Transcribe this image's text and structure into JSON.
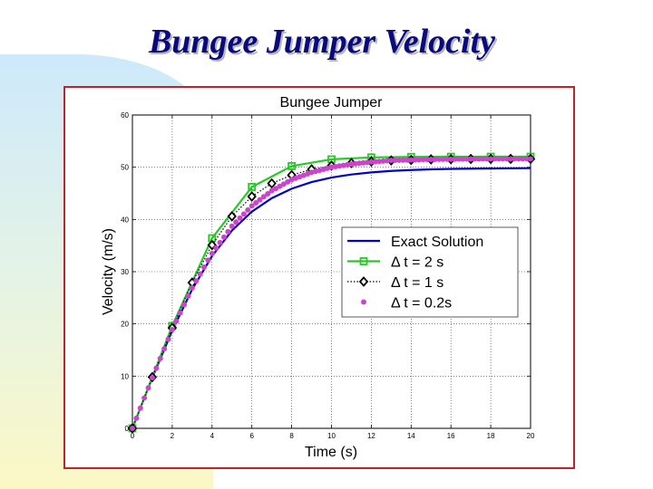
{
  "slide": {
    "title": "Bungee Jumper Velocity"
  },
  "chart_data": {
    "type": "line",
    "title": "Bungee Jumper",
    "xlabel": "Time (s)",
    "ylabel": "Velocity (m/s)",
    "xlim": [
      0,
      20
    ],
    "ylim": [
      0,
      60
    ],
    "xticks": [
      0,
      2,
      4,
      6,
      8,
      10,
      12,
      14,
      16,
      18,
      20
    ],
    "yticks": [
      0,
      10,
      20,
      30,
      40,
      50,
      60
    ],
    "grid": true,
    "legend_position": "center-right",
    "series": [
      {
        "name": "Exact Solution",
        "color": "#0000cc",
        "style": "solid",
        "x": [
          0,
          1,
          2,
          3,
          4,
          5,
          6,
          7,
          8,
          9,
          10,
          11,
          12,
          13,
          14,
          15,
          16,
          17,
          18,
          19,
          20
        ],
        "y": [
          0,
          9.69,
          18.73,
          26.61,
          32.99,
          37.88,
          41.49,
          44.07,
          45.89,
          47.15,
          48.02,
          48.61,
          49.01,
          49.29,
          49.47,
          49.59,
          49.68,
          49.73,
          49.77,
          49.8,
          49.82
        ]
      },
      {
        "name": "Δ t = 2 s",
        "color": "#22cc22",
        "style": "solid",
        "marker": "square",
        "x": [
          0,
          2,
          4,
          6,
          8,
          10,
          12,
          14,
          16,
          18,
          20
        ],
        "y": [
          0,
          19.62,
          36.41,
          46.22,
          50.22,
          51.51,
          51.88,
          51.98,
          52.01,
          52.02,
          52.02
        ]
      },
      {
        "name": "Δ t = 1 s",
        "color": "#000000",
        "style": "dotted",
        "marker": "diamond",
        "x": [
          0,
          1,
          2,
          3,
          4,
          5,
          6,
          7,
          8,
          9,
          10,
          11,
          12,
          13,
          14,
          15,
          16,
          17,
          18,
          19,
          20
        ],
        "y": [
          0,
          9.81,
          19.24,
          27.9,
          35.1,
          40.6,
          44.4,
          46.9,
          48.5,
          49.6,
          50.3,
          50.8,
          51.1,
          51.3,
          51.4,
          51.5,
          51.55,
          51.58,
          51.6,
          51.6,
          51.6
        ]
      },
      {
        "name": "Δ t = 0.2s",
        "color": "#cc44cc",
        "style": "none",
        "marker": "circle",
        "x": [
          0,
          1,
          2,
          3,
          4,
          5,
          6,
          7,
          8,
          9,
          10,
          11,
          12,
          13,
          14,
          15,
          16,
          17,
          18,
          19,
          20
        ],
        "y": [
          0,
          9.7,
          18.9,
          26.9,
          33.5,
          38.7,
          42.6,
          45.5,
          47.6,
          49.0,
          50.0,
          50.6,
          51.0,
          51.3,
          51.4,
          51.5,
          51.55,
          51.58,
          51.6,
          51.6,
          51.6
        ]
      }
    ]
  }
}
